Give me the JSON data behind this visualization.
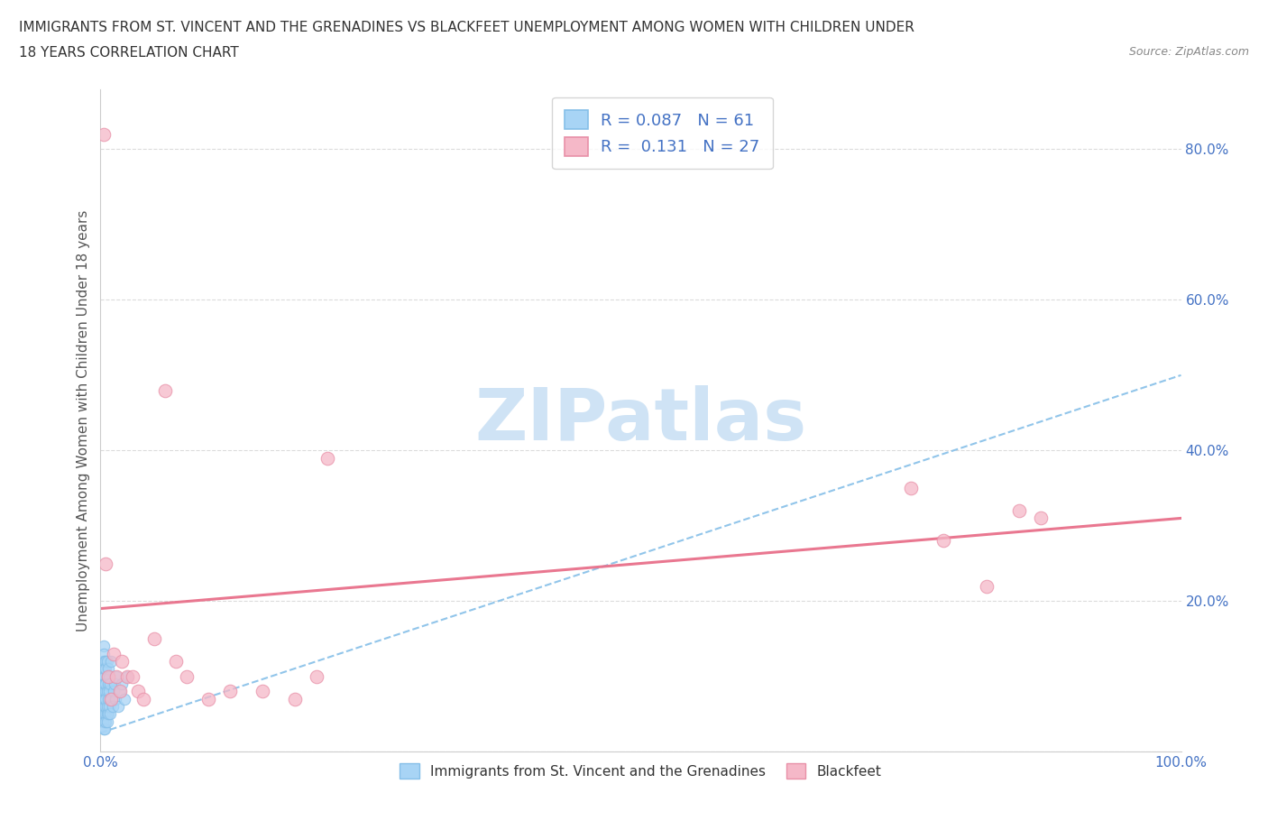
{
  "title_line1": "IMMIGRANTS FROM ST. VINCENT AND THE GRENADINES VS BLACKFEET UNEMPLOYMENT AMONG WOMEN WITH CHILDREN UNDER",
  "title_line2": "18 YEARS CORRELATION CHART",
  "source": "Source: ZipAtlas.com",
  "ylabel": "Unemployment Among Women with Children Under 18 years",
  "xlim": [
    0,
    1.0
  ],
  "ylim": [
    0,
    0.88
  ],
  "blue_R": 0.087,
  "blue_N": 61,
  "pink_R": 0.131,
  "pink_N": 27,
  "blue_color": "#a8d4f5",
  "pink_color": "#f5b8c8",
  "blue_edge_color": "#85bfe8",
  "pink_edge_color": "#e890a8",
  "blue_line_color": "#85bfe8",
  "pink_line_color": "#e8708a",
  "watermark": "ZIPatlas",
  "watermark_color": "#cfe3f5",
  "legend_label_blue": "Immigrants from St. Vincent and the Grenadines",
  "legend_label_pink": "Blackfeet",
  "blue_x": [
    0.001,
    0.002,
    0.002,
    0.002,
    0.003,
    0.003,
    0.003,
    0.003,
    0.003,
    0.003,
    0.003,
    0.003,
    0.003,
    0.003,
    0.004,
    0.004,
    0.004,
    0.004,
    0.004,
    0.004,
    0.004,
    0.004,
    0.004,
    0.004,
    0.004,
    0.004,
    0.005,
    0.005,
    0.005,
    0.005,
    0.005,
    0.005,
    0.005,
    0.005,
    0.006,
    0.006,
    0.006,
    0.006,
    0.006,
    0.006,
    0.007,
    0.007,
    0.007,
    0.007,
    0.008,
    0.008,
    0.008,
    0.009,
    0.009,
    0.01,
    0.01,
    0.011,
    0.012,
    0.013,
    0.014,
    0.015,
    0.016,
    0.018,
    0.02,
    0.022,
    0.025
  ],
  "blue_y": [
    0.05,
    0.08,
    0.12,
    0.04,
    0.06,
    0.1,
    0.14,
    0.09,
    0.03,
    0.07,
    0.11,
    0.05,
    0.08,
    0.13,
    0.04,
    0.07,
    0.1,
    0.06,
    0.09,
    0.12,
    0.05,
    0.08,
    0.03,
    0.11,
    0.06,
    0.09,
    0.05,
    0.08,
    0.12,
    0.06,
    0.04,
    0.09,
    0.07,
    0.11,
    0.05,
    0.08,
    0.1,
    0.06,
    0.12,
    0.04,
    0.07,
    0.09,
    0.05,
    0.11,
    0.06,
    0.08,
    0.1,
    0.05,
    0.09,
    0.07,
    0.12,
    0.06,
    0.08,
    0.09,
    0.07,
    0.1,
    0.06,
    0.08,
    0.09,
    0.07,
    0.1
  ],
  "pink_x": [
    0.003,
    0.005,
    0.007,
    0.01,
    0.012,
    0.015,
    0.018,
    0.02,
    0.025,
    0.03,
    0.035,
    0.04,
    0.05,
    0.06,
    0.07,
    0.08,
    0.1,
    0.12,
    0.15,
    0.18,
    0.2,
    0.21,
    0.75,
    0.78,
    0.82,
    0.85,
    0.87
  ],
  "pink_y": [
    0.82,
    0.25,
    0.1,
    0.07,
    0.13,
    0.1,
    0.08,
    0.12,
    0.1,
    0.1,
    0.08,
    0.07,
    0.15,
    0.48,
    0.12,
    0.1,
    0.07,
    0.08,
    0.08,
    0.07,
    0.1,
    0.39,
    0.35,
    0.28,
    0.22,
    0.32,
    0.31
  ],
  "blue_trend_x": [
    0.0,
    1.0
  ],
  "blue_trend_y": [
    0.025,
    0.5
  ],
  "pink_trend_x": [
    0.0,
    1.0
  ],
  "pink_trend_y": [
    0.19,
    0.31
  ]
}
